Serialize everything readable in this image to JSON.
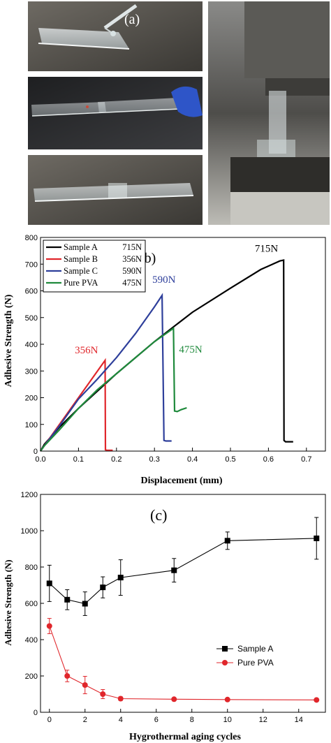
{
  "panel_a": {
    "label": "(a)"
  },
  "chart_data": [
    {
      "type": "line",
      "panel_label": "(b)",
      "xlabel": "Displacement (mm)",
      "ylabel": "Adhesive Strength (N)",
      "xlim": [
        0,
        0.75
      ],
      "ylim": [
        0,
        800
      ],
      "x_ticks": [
        "0.0",
        "0.1",
        "0.2",
        "0.3",
        "0.4",
        "0.5",
        "0.6",
        "0.7"
      ],
      "y_ticks": [
        "0",
        "100",
        "200",
        "300",
        "400",
        "500",
        "600",
        "700",
        "800"
      ],
      "legend_position": "top-left",
      "series": [
        {
          "name": "Sample A",
          "legend_value": "715N",
          "peak_label": "715N",
          "color": "#000000",
          "points": [
            [
              0,
              0
            ],
            [
              0.01,
              25
            ],
            [
              0.05,
              90
            ],
            [
              0.1,
              160
            ],
            [
              0.2,
              290
            ],
            [
              0.3,
              410
            ],
            [
              0.4,
              520
            ],
            [
              0.5,
              610
            ],
            [
              0.58,
              680
            ],
            [
              0.63,
              712
            ],
            [
              0.64,
              715
            ],
            [
              0.641,
              40
            ],
            [
              0.645,
              35
            ],
            [
              0.665,
              35
            ]
          ]
        },
        {
          "name": "Sample B",
          "legend_value": "356N",
          "peak_label": "356N",
          "color": "#e0262b",
          "points": [
            [
              0,
              0
            ],
            [
              0.01,
              20
            ],
            [
              0.05,
              100
            ],
            [
              0.1,
              200
            ],
            [
              0.14,
              280
            ],
            [
              0.17,
              340
            ],
            [
              0.171,
              5
            ],
            [
              0.175,
              3
            ],
            [
              0.19,
              3
            ]
          ]
        },
        {
          "name": "Sample C",
          "legend_value": "590N",
          "peak_label": "590N",
          "color": "#2e3f9b",
          "points": [
            [
              0,
              0
            ],
            [
              0.01,
              20
            ],
            [
              0.05,
              95
            ],
            [
              0.1,
              195
            ],
            [
              0.15,
              270
            ],
            [
              0.2,
              350
            ],
            [
              0.25,
              440
            ],
            [
              0.3,
              540
            ],
            [
              0.32,
              583
            ],
            [
              0.325,
              40
            ],
            [
              0.33,
              38
            ],
            [
              0.345,
              38
            ]
          ]
        },
        {
          "name": "Pure PVA",
          "legend_value": "475N",
          "peak_label": "475N",
          "color": "#1f8a3c",
          "points": [
            [
              0,
              0
            ],
            [
              0.01,
              20
            ],
            [
              0.05,
              80
            ],
            [
              0.1,
              160
            ],
            [
              0.15,
              230
            ],
            [
              0.2,
              290
            ],
            [
              0.25,
              350
            ],
            [
              0.3,
              410
            ],
            [
              0.35,
              460
            ],
            [
              0.353,
              150
            ],
            [
              0.36,
              148
            ],
            [
              0.37,
              155
            ],
            [
              0.385,
              162
            ]
          ]
        }
      ]
    },
    {
      "type": "line",
      "panel_label": "(c)",
      "xlabel": "Hygrothermal aging cycles",
      "ylabel": "Adhesive Strength (N)",
      "xlim": [
        -0.5,
        15.5
      ],
      "ylim": [
        0,
        1200
      ],
      "x_ticks": [
        "0",
        "2",
        "4",
        "6",
        "8",
        "10",
        "12",
        "14"
      ],
      "y_ticks": [
        "0",
        "200",
        "400",
        "600",
        "800",
        "1000",
        "1200"
      ],
      "legend_position": "bottom-right",
      "series": [
        {
          "name": "Sample A",
          "color": "#000000",
          "marker": "square",
          "x": [
            0,
            1,
            2,
            3,
            4,
            7,
            10,
            15
          ],
          "y": [
            710,
            620,
            598,
            688,
            742,
            782,
            945,
            958
          ],
          "err": [
            100,
            55,
            65,
            58,
            98,
            65,
            48,
            115
          ]
        },
        {
          "name": "Pure PVA",
          "color": "#e0262b",
          "marker": "circle",
          "x": [
            0,
            1,
            2,
            3,
            4,
            7,
            10,
            15
          ],
          "y": [
            475,
            200,
            150,
            100,
            75,
            72,
            70,
            68
          ],
          "err": [
            42,
            32,
            48,
            25,
            10,
            6,
            6,
            6
          ]
        }
      ]
    }
  ]
}
